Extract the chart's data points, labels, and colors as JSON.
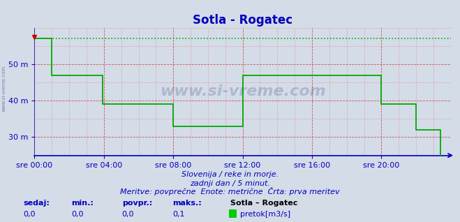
{
  "title": "Sotla - Rogatec",
  "background_color": "#d4dce8",
  "plot_bg_color": "#d4dce8",
  "line_color": "#00aa00",
  "dotted_line_color": "#00aa00",
  "axis_color": "#0000bb",
  "grid_color_major": "#cc4444",
  "grid_color_minor": "#dd8888",
  "yticks": [
    30,
    40,
    50
  ],
  "ytick_labels": [
    "30 m",
    "40 m",
    "50 m"
  ],
  "ylim": [
    25.0,
    60.0
  ],
  "xlim_minutes": [
    0,
    288
  ],
  "xtick_positions": [
    0,
    48,
    96,
    144,
    192,
    240
  ],
  "xtick_labels": [
    "sre 00:00",
    "sre 04:00",
    "sre 08:00",
    "sre 12:00",
    "sre 16:00",
    "sre 20:00"
  ],
  "footer_line1": "Slovenija / reke in morje.",
  "footer_line2": "zadnji dan / 5 minut.",
  "footer_line3": "Meritve: povprečne  Enote: metrične  Črta: prva meritev",
  "stats_labels": [
    "sedaj:",
    "min.:",
    "povpr.:",
    "maks.:"
  ],
  "stats_values": [
    "0,0",
    "0,0",
    "0,0",
    "0,1"
  ],
  "legend_label": "Sotla – Rogatec",
  "legend_unit": "pretok[m3/s]",
  "legend_color": "#00cc00",
  "watermark": "www.si-vreme.com",
  "data_x": [
    0,
    12,
    12,
    47,
    47,
    96,
    96,
    144,
    144,
    192,
    192,
    240,
    240,
    264,
    264,
    281,
    281,
    288
  ],
  "data_y": [
    57,
    57,
    47,
    47,
    39,
    39,
    33,
    33,
    47,
    47,
    47,
    47,
    39,
    39,
    32,
    32,
    0,
    0
  ],
  "dotted_y": 57,
  "title_fontsize": 12,
  "tick_fontsize": 8,
  "footer_fontsize": 8,
  "stats_fontsize": 8
}
